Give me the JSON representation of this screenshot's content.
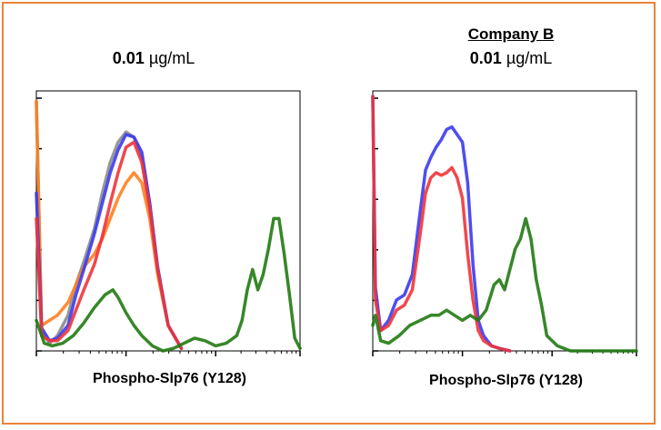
{
  "colors": {
    "frame": "#E8843A",
    "blue": "#3B3BF0",
    "red": "#F0343A",
    "gray": "#8C8C8C",
    "orange": "#FF7F1E",
    "green": "#217A12"
  },
  "chart_data": [
    {
      "type": "line",
      "title": "",
      "concentration_value": "0.01",
      "concentration_unit": "µg/mL",
      "xlabel": "Phospho-Slp76 (Y128)",
      "ylabel": "",
      "xlim": [
        0,
        100
      ],
      "ylim": [
        0,
        100
      ],
      "grid": false,
      "series": [
        {
          "color": "#8C8C8C",
          "x": [
            0,
            2,
            5,
            8,
            12,
            15,
            18,
            22,
            25,
            28,
            31,
            34,
            37,
            40,
            43,
            46,
            50,
            55
          ],
          "y": [
            98,
            8,
            3,
            6,
            14,
            26,
            35,
            48,
            62,
            74,
            82,
            86,
            84,
            76,
            58,
            32,
            10,
            1
          ]
        },
        {
          "color": "#FF7F1E",
          "x": [
            0,
            2,
            5,
            8,
            12,
            15,
            18,
            22,
            25,
            28,
            31,
            34,
            37,
            40,
            43,
            46,
            50,
            55
          ],
          "y": [
            98,
            10,
            12,
            14,
            19,
            26,
            33,
            38,
            44,
            52,
            60,
            66,
            70,
            66,
            52,
            30,
            10,
            1
          ]
        },
        {
          "color": "#3B3BF0",
          "x": [
            0,
            2,
            5,
            8,
            12,
            15,
            18,
            22,
            25,
            28,
            31,
            34,
            37,
            40,
            43,
            46,
            50,
            55
          ],
          "y": [
            62,
            9,
            4,
            5,
            10,
            22,
            32,
            46,
            58,
            70,
            79,
            85,
            84,
            78,
            58,
            33,
            10,
            1
          ]
        },
        {
          "color": "#F0343A",
          "x": [
            0,
            2,
            5,
            8,
            12,
            15,
            18,
            22,
            25,
            28,
            31,
            34,
            37,
            40,
            43,
            46,
            50,
            55
          ],
          "y": [
            52,
            6,
            4,
            4,
            8,
            16,
            24,
            34,
            45,
            58,
            70,
            80,
            82,
            74,
            56,
            32,
            10,
            1
          ]
        },
        {
          "color": "#217A12",
          "x": [
            0,
            3,
            6,
            10,
            14,
            18,
            22,
            26,
            29,
            31,
            34,
            37,
            40,
            44,
            48,
            52,
            56,
            60,
            64,
            68,
            72,
            76,
            78,
            80,
            82,
            84,
            86,
            88,
            90,
            92,
            94,
            96,
            98,
            100
          ],
          "y": [
            12,
            3,
            2,
            3,
            6,
            11,
            17,
            22,
            24,
            21,
            15,
            10,
            6,
            2,
            0,
            1,
            3,
            5,
            4,
            2,
            3,
            6,
            12,
            24,
            32,
            24,
            30,
            40,
            52,
            52,
            38,
            22,
            5,
            1
          ]
        }
      ]
    },
    {
      "type": "line",
      "title": "Company B",
      "concentration_value": "0.01",
      "concentration_unit": "µg/mL",
      "xlabel": "Phospho-Slp76 (Y128)",
      "ylabel": "",
      "xlim": [
        0,
        100
      ],
      "ylim": [
        0,
        100
      ],
      "grid": false,
      "series": [
        {
          "color": "#3B3BF0",
          "x": [
            0,
            1,
            3,
            6,
            9,
            12,
            15,
            18,
            20,
            22,
            24,
            26,
            28,
            30,
            32,
            34,
            36,
            38,
            40,
            42,
            45,
            48,
            52
          ],
          "y": [
            100,
            25,
            8,
            12,
            20,
            22,
            30,
            55,
            71,
            76,
            80,
            83,
            87,
            88,
            85,
            82,
            66,
            34,
            12,
            6,
            2,
            1,
            0
          ]
        },
        {
          "color": "#F0343A",
          "x": [
            0,
            1,
            3,
            6,
            9,
            12,
            15,
            18,
            20,
            22,
            24,
            26,
            28,
            30,
            32,
            34,
            36,
            38,
            40,
            42,
            45,
            48,
            52
          ],
          "y": [
            100,
            20,
            8,
            10,
            16,
            18,
            24,
            46,
            62,
            68,
            70,
            69,
            70,
            72,
            68,
            60,
            38,
            20,
            8,
            4,
            2,
            1,
            0
          ]
        },
        {
          "color": "#217A12",
          "x": [
            0,
            1,
            3,
            6,
            10,
            14,
            18,
            22,
            25,
            28,
            31,
            34,
            37,
            40,
            43,
            46,
            48,
            50,
            52,
            54,
            56,
            58,
            60,
            62,
            64,
            66,
            70,
            75,
            80,
            90,
            100
          ],
          "y": [
            10,
            14,
            4,
            3,
            6,
            10,
            12,
            14,
            14,
            16,
            14,
            12,
            14,
            12,
            16,
            26,
            28,
            24,
            32,
            40,
            44,
            52,
            44,
            28,
            18,
            6,
            2,
            0,
            0,
            0,
            0
          ]
        }
      ]
    }
  ]
}
